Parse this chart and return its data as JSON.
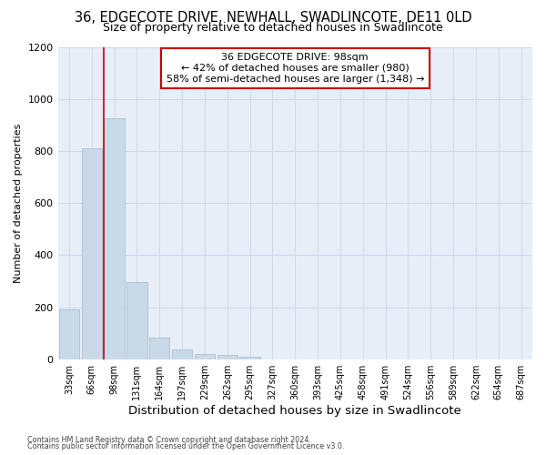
{
  "title": "36, EDGECOTE DRIVE, NEWHALL, SWADLINCOTE, DE11 0LD",
  "subtitle": "Size of property relative to detached houses in Swadlincote",
  "xlabel": "Distribution of detached houses by size in Swadlincote",
  "ylabel": "Number of detached properties",
  "footnote1": "Contains HM Land Registry data © Crown copyright and database right 2024.",
  "footnote2": "Contains public sector information licensed under the Open Government Licence v3.0.",
  "bar_labels": [
    "33sqm",
    "66sqm",
    "98sqm",
    "131sqm",
    "164sqm",
    "197sqm",
    "229sqm",
    "262sqm",
    "295sqm",
    "327sqm",
    "360sqm",
    "393sqm",
    "425sqm",
    "458sqm",
    "491sqm",
    "524sqm",
    "556sqm",
    "589sqm",
    "622sqm",
    "654sqm",
    "687sqm"
  ],
  "bar_values": [
    193,
    810,
    925,
    295,
    82,
    36,
    20,
    15,
    10,
    0,
    0,
    0,
    0,
    0,
    0,
    0,
    0,
    0,
    0,
    0,
    0
  ],
  "bar_color": "#c9d9e8",
  "bar_edgecolor": "#a0b8cc",
  "property_line_x": 2,
  "annotation_title": "36 EDGECOTE DRIVE: 98sqm",
  "annotation_line1": "← 42% of detached houses are smaller (980)",
  "annotation_line2": "58% of semi-detached houses are larger (1,348) →",
  "annotation_box_color": "#ffffff",
  "annotation_box_edgecolor": "#cc0000",
  "vline_color": "#cc0000",
  "ylim": [
    0,
    1200
  ],
  "yticks": [
    0,
    200,
    400,
    600,
    800,
    1000,
    1200
  ],
  "grid_color": "#d0d8e8",
  "bg_color": "#e8eef8",
  "fig_bg_color": "#ffffff",
  "title_fontsize": 10.5,
  "subtitle_fontsize": 9.0,
  "xlabel_fontsize": 9.5
}
